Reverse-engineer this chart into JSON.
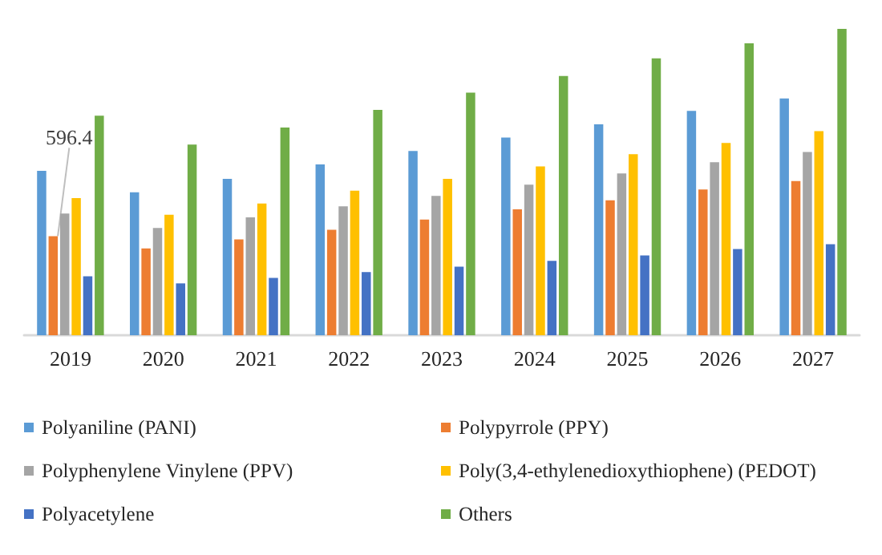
{
  "chart_data": {
    "type": "bar",
    "categories": [
      "2019",
      "2020",
      "2021",
      "2022",
      "2023",
      "2024",
      "2025",
      "2026",
      "2027"
    ],
    "series": [
      {
        "name": "Polyaniline (PANI)",
        "color": "#5b9bd5",
        "values": [
          989,
          860,
          941,
          1028,
          1108,
          1189,
          1269,
          1350,
          1424
        ]
      },
      {
        "name": "Polypyrrole (PPY)",
        "color": "#ed7d31",
        "values": [
          596.4,
          522,
          577,
          635,
          696,
          757,
          812,
          877,
          928
        ],
        "value_labels": [
          "596.4",
          null,
          null,
          null,
          null,
          null,
          null,
          null,
          null
        ]
      },
      {
        "name": "Polyphenylene Vinylene (PPV)",
        "color": "#a5a5a5",
        "values": [
          732,
          645,
          709,
          776,
          838,
          906,
          973,
          1041,
          1102
        ]
      },
      {
        "name": "Poly(3,4-ethylenedioxythiophene) (PEDOT)",
        "color": "#ffc000",
        "values": [
          825,
          725,
          793,
          870,
          941,
          1015,
          1089,
          1157,
          1228
        ]
      },
      {
        "name": "Polyacetylene",
        "color": "#4472c4",
        "values": [
          355,
          312,
          345,
          380,
          412,
          448,
          480,
          519,
          548
        ]
      },
      {
        "name": "Others",
        "color": "#70ad47",
        "values": [
          1321,
          1147,
          1250,
          1356,
          1460,
          1559,
          1666,
          1756,
          1843
        ]
      }
    ],
    "tick_labels": "x",
    "grid": false,
    "legend": "bottom"
  }
}
